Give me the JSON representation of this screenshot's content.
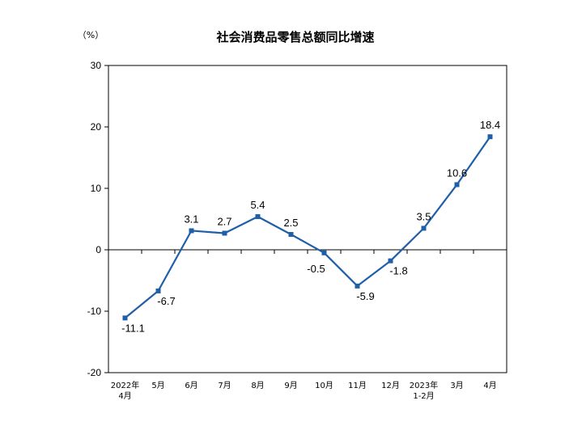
{
  "chart_data": {
    "type": "line",
    "title": "社会消费品零售总额同比增速",
    "unit": "（%）",
    "categories": [
      [
        "2022年",
        "4月"
      ],
      [
        "5月"
      ],
      [
        "6月"
      ],
      [
        "7月"
      ],
      [
        "8月"
      ],
      [
        "9月"
      ],
      [
        "10月"
      ],
      [
        "11月"
      ],
      [
        "12月"
      ],
      [
        "2023年",
        "1-2月"
      ],
      [
        "3月"
      ],
      [
        "4月"
      ]
    ],
    "series": [
      {
        "values": [
          -11.1,
          -6.7,
          3.1,
          2.7,
          5.4,
          2.5,
          -0.5,
          -5.9,
          -1.8,
          3.5,
          10.6,
          18.4
        ],
        "labels": [
          "-11.1",
          "-6.7",
          "3.1",
          "2.7",
          "5.4",
          "2.5",
          "-0.5",
          "-5.9",
          "-1.8",
          "3.5",
          "10.6",
          "18.4"
        ],
        "color": "#1f5fa8"
      }
    ],
    "yticks": [
      "30",
      "20",
      "10",
      "0",
      "-10",
      "-20"
    ],
    "ylim": [
      -20,
      30
    ],
    "grid": false,
    "legend": "none"
  }
}
